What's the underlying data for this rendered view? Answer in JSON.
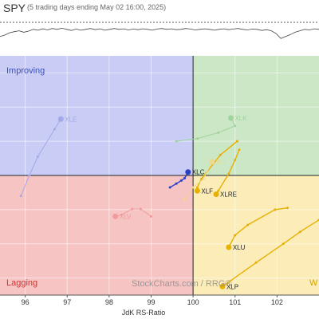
{
  "header": {
    "symbol": "SPY",
    "subtitle": "(5 trading days ending May 02 16:00, 2025)"
  },
  "watermark": {
    "brand": "StockCharts.com",
    "suffix": "/ RRG®"
  },
  "quadrants": {
    "improving": {
      "label": "Improving",
      "color": "#c9cdf6",
      "label_color": "#3a4fc0"
    },
    "leading": {
      "label": "",
      "color": "#cbe7c6"
    },
    "lagging": {
      "label": "Lagging",
      "color": "#f7c4c4",
      "label_color": "#d83030"
    },
    "weakening": {
      "label": "W",
      "color": "#fbecb8",
      "label_color": "#d7a400"
    }
  },
  "spark_data": [
    0.55,
    0.5,
    0.42,
    0.38,
    0.35,
    0.4,
    0.36,
    0.3,
    0.33,
    0.28,
    0.32,
    0.27,
    0.3,
    0.26,
    0.3,
    0.34,
    0.29,
    0.33,
    0.3,
    0.27,
    0.31,
    0.28,
    0.33,
    0.3,
    0.27,
    0.3,
    0.28,
    0.32,
    0.29,
    0.31,
    0.28,
    0.3,
    0.33,
    0.29,
    0.27,
    0.3,
    0.28,
    0.31,
    0.3,
    0.27,
    0.29,
    0.32,
    0.3,
    0.28,
    0.3,
    0.33,
    0.3,
    0.28,
    0.31,
    0.29,
    0.27,
    0.3,
    0.32,
    0.29,
    0.3,
    0.34,
    0.31,
    0.35,
    0.45,
    0.62,
    0.55,
    0.48,
    0.4,
    0.35,
    0.3,
    0.32,
    0.28,
    0.3
  ],
  "chart_data": {
    "type": "scatter",
    "title": "SPY",
    "subtitle": "(5 trading days ending May 02 16:00, 2025)",
    "xlabel": "JdK RS-Ratio",
    "ylabel": "",
    "xlim": [
      95.4,
      103
    ],
    "ylim": [
      96.5,
      103.5
    ],
    "x_ticks": [
      "96",
      "97",
      "98",
      "99",
      "100",
      "101",
      "102"
    ],
    "x_tick_values": [
      96,
      97,
      98,
      99,
      100,
      101,
      102
    ],
    "grid": true,
    "center": [
      100,
      100
    ],
    "series": [
      {
        "name": "XLC",
        "color": "#2a3fc4",
        "faded": false,
        "x": [
          99.45,
          99.6,
          99.72,
          99.8,
          99.88
        ],
        "y": [
          99.65,
          99.76,
          99.85,
          99.92,
          100.1
        ]
      },
      {
        "name": "XLF",
        "color": "#e8b000",
        "faded": false,
        "x": [
          101.05,
          100.65,
          100.2,
          100.1,
          100.1
        ],
        "y": [
          101.0,
          100.6,
          99.9,
          99.65,
          99.55
        ]
      },
      {
        "name": "XLRE",
        "color": "#e8b000",
        "faded": false,
        "x": [
          101.1,
          101.0,
          100.85,
          100.6,
          100.55
        ],
        "y": [
          100.75,
          100.45,
          100.05,
          99.55,
          99.45
        ]
      },
      {
        "name": "XLU",
        "color": "#e8b000",
        "faded": false,
        "x": [
          102.25,
          101.95,
          101.3,
          101.0,
          100.85
        ],
        "y": [
          99.05,
          99.0,
          98.55,
          98.25,
          97.9
        ]
      },
      {
        "name": "XLP",
        "color": "#e8b000",
        "faded": false,
        "x": [
          103.0,
          102.55,
          102.15,
          101.5,
          100.7
        ],
        "y": [
          98.7,
          98.35,
          98.0,
          97.45,
          96.75
        ]
      },
      {
        "name": "XLE",
        "color": "#a3a9e8",
        "faded": true,
        "x": [
          95.9,
          96.1,
          96.3,
          96.7,
          96.85
        ],
        "y": [
          99.4,
          100.0,
          100.55,
          101.35,
          101.65
        ]
      },
      {
        "name": "XLV",
        "color": "#ee9c9c",
        "faded": true,
        "x": [
          99.0,
          98.75,
          98.55,
          98.3,
          98.15
        ],
        "y": [
          98.8,
          99.02,
          99.02,
          98.85,
          98.8
        ]
      },
      {
        "name": "XLK",
        "color": "#9fd49a",
        "faded": true,
        "x": [
          99.6,
          100.1,
          100.6,
          101.0,
          100.9
        ],
        "y": [
          101.0,
          101.08,
          101.25,
          101.45,
          101.68
        ]
      },
      {
        "name": "XLI",
        "color": "#f0d98a",
        "faded": true,
        "x": [
          99.8,
          100.0,
          100.25,
          100.45
        ],
        "y": [
          99.3,
          99.65,
          99.9,
          100.4
        ]
      }
    ]
  }
}
